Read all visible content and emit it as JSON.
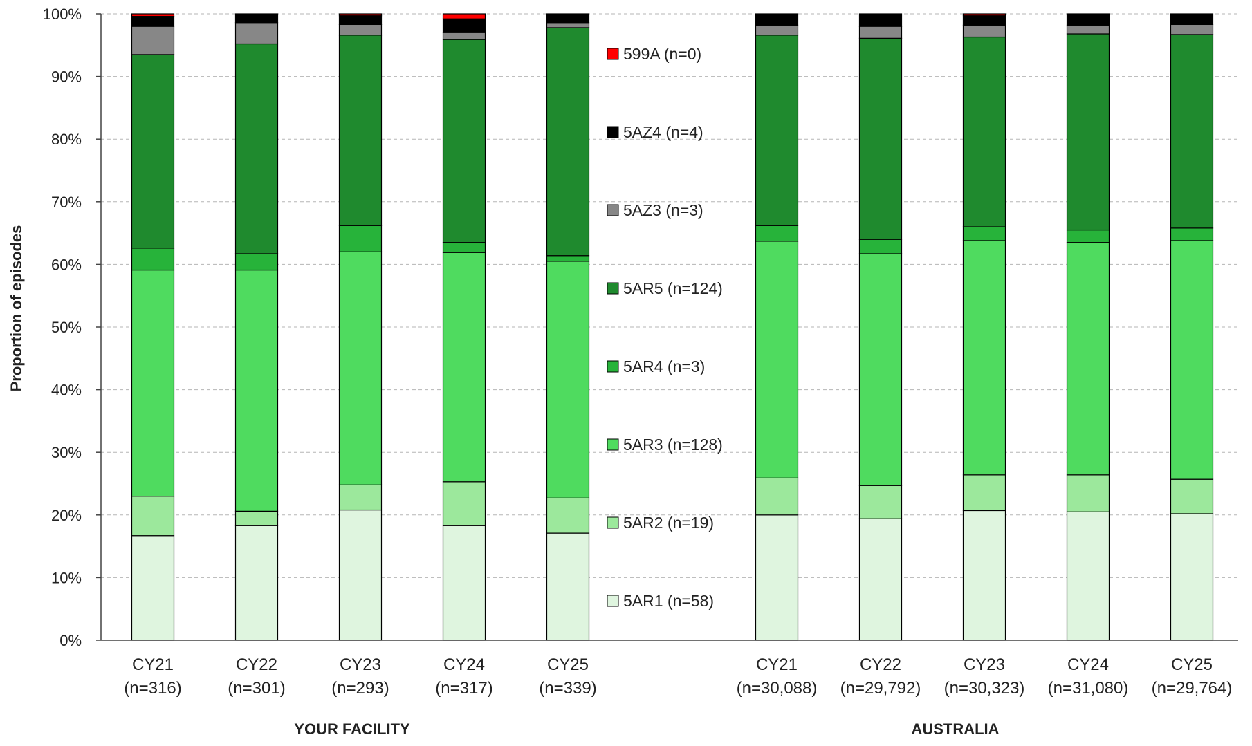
{
  "chart_data": {
    "type": "bar",
    "stacked": true,
    "percent": true,
    "ylabel": "Proportion of episodes",
    "ylim": [
      0,
      100
    ],
    "ytick_step": 10,
    "grid": true,
    "legend_position": "middle",
    "groups": [
      {
        "label": "YOUR FACILITY",
        "categories": [
          {
            "name": "CY21",
            "n": "(n=316)"
          },
          {
            "name": "CY22",
            "n": "(n=301)"
          },
          {
            "name": "CY23",
            "n": "(n=293)"
          },
          {
            "name": "CY24",
            "n": "(n=317)"
          },
          {
            "name": "CY25",
            "n": "(n=339)"
          }
        ]
      },
      {
        "label": "AUSTRALIA",
        "categories": [
          {
            "name": "CY21",
            "n": "(n=30,088)"
          },
          {
            "name": "CY22",
            "n": "(n=29,792)"
          },
          {
            "name": "CY23",
            "n": "(n=30,323)"
          },
          {
            "name": "CY24",
            "n": "(n=31,080)"
          },
          {
            "name": "CY25",
            "n": "(n=29,764)"
          }
        ]
      }
    ],
    "series": [
      {
        "name": "5AR1",
        "legend": "5AR1 (n=58)",
        "color": "#dff5df",
        "values": [
          16.7,
          18.3,
          20.8,
          18.3,
          17.1,
          20.0,
          19.4,
          20.7,
          20.5,
          20.2
        ]
      },
      {
        "name": "5AR2",
        "legend": "5AR2 (n=19)",
        "color": "#9ce89c",
        "values": [
          6.3,
          2.3,
          4.0,
          7.0,
          5.6,
          5.9,
          5.3,
          5.7,
          5.9,
          5.5
        ]
      },
      {
        "name": "5AR3",
        "legend": "5AR3 (n=128)",
        "color": "#4fdb5f",
        "values": [
          36.1,
          38.5,
          37.2,
          36.6,
          37.8,
          37.8,
          37.0,
          37.4,
          37.1,
          38.1
        ]
      },
      {
        "name": "5AR4",
        "legend": "5AR4 (n=3)",
        "color": "#27b33a",
        "values": [
          3.5,
          2.6,
          4.2,
          1.6,
          0.9,
          2.5,
          2.3,
          2.2,
          2.0,
          2.0
        ]
      },
      {
        "name": "5AR5",
        "legend": "5AR5 (n=124)",
        "color": "#1f8a2e",
        "values": [
          30.9,
          33.5,
          30.4,
          32.4,
          36.4,
          30.4,
          32.1,
          30.3,
          31.3,
          30.9
        ]
      },
      {
        "name": "5AZ3",
        "legend": "5AZ3 (n=3)",
        "color": "#878787",
        "values": [
          4.5,
          3.4,
          1.7,
          1.1,
          0.8,
          1.6,
          1.9,
          1.9,
          1.4,
          1.6
        ]
      },
      {
        "name": "5AZ4",
        "legend": "5AZ4 (n=4)",
        "color": "#000000",
        "values": [
          1.6,
          1.4,
          1.4,
          2.2,
          1.4,
          1.8,
          2.0,
          1.5,
          1.8,
          1.7
        ]
      },
      {
        "name": "599A",
        "legend": "599A (n=0)",
        "color": "#ff0000",
        "values": [
          0.4,
          0.0,
          0.3,
          0.8,
          0.0,
          0.0,
          0.0,
          0.3,
          0.0,
          0.0
        ]
      }
    ]
  }
}
